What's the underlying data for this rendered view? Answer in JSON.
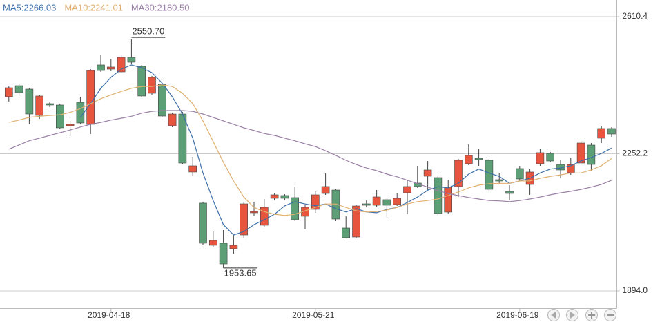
{
  "chart_data": {
    "type": "candlestick",
    "categories": [
      null,
      null,
      null,
      null,
      null,
      null,
      null,
      null,
      null,
      null,
      "2019-04-18",
      null,
      null,
      null,
      null,
      null,
      null,
      null,
      null,
      null,
      null,
      null,
      null,
      null,
      null,
      null,
      null,
      null,
      null,
      null,
      "2019-05-21",
      null,
      null,
      null,
      null,
      null,
      null,
      null,
      null,
      null,
      null,
      null,
      null,
      null,
      null,
      null,
      null,
      null,
      null,
      null,
      "2019-06-19",
      null,
      null,
      null,
      null,
      null,
      null,
      null,
      null,
      null
    ],
    "ohlc": {
      "open": [
        2401.1,
        2429.9,
        2420.9,
        2352.3,
        2383.0,
        2379.4,
        2325.3,
        2386.6,
        2328.9,
        2484.1,
        2473.2,
        2466.0,
        2503.9,
        2480.5,
        2410.1,
        2433.5,
        2325.3,
        2355.9,
        2204.4,
        2123.2,
        2013.1,
        2018.5,
        2004.1,
        2040.1,
        2097.9,
        2065.4,
        2135.8,
        2143.0,
        2137.6,
        2088.9,
        2106.9,
        2148.4,
        2157.4,
        2058.2,
        2034.7,
        2121.3,
        2117.7,
        2132.2,
        2119.5,
        2150.2,
        2175.5,
        2193.5,
        2189.9,
        2099.7,
        2166.5,
        2226.0,
        2240.4,
        2235.0,
        2184.5,
        2153.8,
        2213.4,
        2171.9,
        2226.0,
        2253.1,
        2224.2,
        2202.6,
        2227.8,
        2274.7,
        2292.8,
        2318.1
      ],
      "high": [
        2428.1,
        2433.5,
        2424.5,
        2406.5,
        2386.6,
        2383.0,
        2337.9,
        2401.1,
        2473.2,
        2509.3,
        2500.3,
        2509.3,
        2550.7,
        2484.1,
        2455.2,
        2437.2,
        2359.6,
        2361.4,
        2244.1,
        2126.8,
        2049.2,
        2052.8,
        2040.1,
        2125.0,
        2126.8,
        2134.0,
        2148.4,
        2146.6,
        2166.5,
        2117.7,
        2153.8,
        2200.8,
        2161.1,
        2088.9,
        2119.5,
        2130.4,
        2157.4,
        2135.8,
        2148.4,
        2184.5,
        2220.6,
        2233.2,
        2193.5,
        2184.5,
        2238.6,
        2276.5,
        2263.9,
        2238.6,
        2202.6,
        2170.1,
        2220.6,
        2211.6,
        2263.9,
        2256.7,
        2235.0,
        2242.3,
        2289.2,
        2280.1,
        2323.5,
        2321.7
      ],
      "low": [
        2388.4,
        2406.5,
        2328.9,
        2343.3,
        2374.0,
        2316.2,
        2298.2,
        2328.9,
        2303.6,
        2466.0,
        2467.8,
        2462.4,
        2487.7,
        2399.3,
        2406.5,
        2346.9,
        2321.7,
        2224.2,
        2193.5,
        2014.9,
        2007.7,
        1953.65,
        1991.4,
        2031.1,
        2090.7,
        2060.0,
        2130.4,
        2130.4,
        2076.2,
        2054.6,
        2097.9,
        2144.8,
        2076.2,
        2031.1,
        2031.1,
        2112.3,
        2112.3,
        2085.3,
        2115.9,
        2094.3,
        2162.9,
        2157.4,
        2090.7,
        2096.1,
        2139.4,
        2222.4,
        2220.6,
        2153.8,
        2175.5,
        2130.4,
        2180.9,
        2144.8,
        2220.6,
        2229.6,
        2188.1,
        2197.1,
        2224.2,
        2206.2,
        2280.1,
        2296.4
      ],
      "close": [
        2424.5,
        2411.9,
        2355.9,
        2402.9,
        2379.4,
        2319.9,
        2328.9,
        2332.5,
        2469.6,
        2469.6,
        2478.7,
        2503.9,
        2491.3,
        2402.9,
        2451.6,
        2350.5,
        2355.9,
        2227.8,
        2220.6,
        2018.5,
        2025.7,
        1964.3,
        2013.1,
        2121.3,
        2101.5,
        2112.3,
        2144.8,
        2135.8,
        2079.8,
        2112.3,
        2144.8,
        2166.5,
        2081.6,
        2032.9,
        2115.9,
        2117.7,
        2139.4,
        2117.7,
        2135.8,
        2166.5,
        2166.5,
        2209.8,
        2096.1,
        2164.7,
        2235.0,
        2247.7,
        2236.8,
        2159.2,
        2180.9,
        2148.4,
        2186.3,
        2204.4,
        2254.9,
        2233.2,
        2209.8,
        2224.2,
        2280.1,
        2224.2,
        2318.1,
        2303.6
      ]
    },
    "up_color": "#e8553f",
    "down_color": "#5c9e76",
    "lines": [
      {
        "name": "MA5:2266.03",
        "color": "#3d6fa8",
        "values": [
          null,
          null,
          null,
          null,
          null,
          null,
          null,
          2347,
          2383,
          2423,
          2452,
          2473,
          2484,
          2477,
          2464,
          2437,
          2401,
          2356,
          2293,
          2202,
          2130,
          2067,
          2040,
          2049,
          2067,
          2080,
          2094,
          2116,
          2127,
          2121,
          2116,
          2121,
          2109,
          2100,
          2109,
          2100,
          2098,
          2107,
          2112,
          2125,
          2139,
          2157,
          2166,
          2163,
          2175,
          2199,
          2212,
          2202,
          2193,
          2175,
          2181,
          2188,
          2202,
          2212,
          2215,
          2221,
          2233,
          2242,
          2253,
          2267
        ]
      },
      {
        "name": "MA10:2241.01",
        "color": "#e0b070",
        "values": [
          2334,
          2340,
          2347,
          2350,
          2352,
          2354,
          2360,
          2370,
          2383,
          2396,
          2406,
          2415,
          2423,
          2428,
          2428,
          2432,
          2428,
          2410,
          2383,
          2338,
          2284,
          2230,
          2181,
          2139,
          2112,
          2101,
          2094,
          2091,
          2094,
          2103,
          2112,
          2121,
          2121,
          2112,
          2103,
          2100,
          2101,
          2105,
          2112,
          2121,
          2127,
          2130,
          2134,
          2143,
          2152,
          2163,
          2170,
          2174,
          2175,
          2175,
          2181,
          2181,
          2188,
          2193,
          2197,
          2202,
          2202,
          2210,
          2221,
          2240
        ]
      },
      {
        "name": "MA30:2180.50",
        "color": "#9a7fa6",
        "values": [
          2264,
          2275,
          2286,
          2293,
          2300,
          2307,
          2314,
          2322,
          2329,
          2334,
          2340,
          2345,
          2350,
          2358,
          2363,
          2365,
          2365,
          2365,
          2363,
          2356,
          2347,
          2338,
          2329,
          2320,
          2313,
          2305,
          2300,
          2293,
          2286,
          2278,
          2271,
          2260,
          2248,
          2235,
          2224,
          2215,
          2208,
          2199,
          2192,
          2183,
          2174,
          2165,
          2156,
          2148,
          2143,
          2138,
          2134,
          2130,
          2129,
          2127,
          2130,
          2134,
          2139,
          2145,
          2150,
          2154,
          2159,
          2165,
          2172,
          2183
        ]
      }
    ],
    "annotations": [
      {
        "value": 2550.7,
        "label": "2550.70"
      },
      {
        "value": 1953.65,
        "label": "1953.65"
      }
    ],
    "ylim": [
      1848.8,
      2653.7
    ],
    "yticks": [
      {
        "value": 1894.0,
        "label": "1894.0"
      },
      2252.2,
      2610.4
    ],
    "grid": true
  }
}
